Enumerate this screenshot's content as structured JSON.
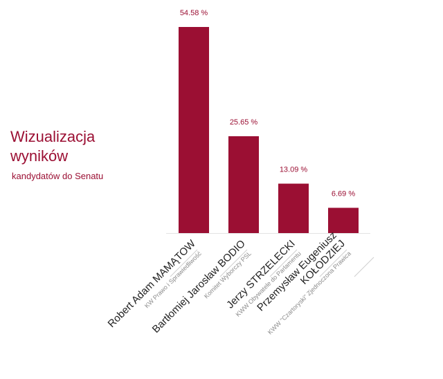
{
  "heading": {
    "line1": "Wizualizacja",
    "line2": "wyników",
    "subtitle": "kandydatów do Senatu"
  },
  "colors": {
    "accent": "#9b0f33"
  },
  "chart_data": {
    "type": "bar",
    "unit": "%",
    "ylim": [
      0,
      54.58
    ],
    "grid": false,
    "categories": [
      {
        "name": [
          "Robert Adam MAMĄTOW"
        ],
        "party": "KW Prawo i Sprawiedliwość"
      },
      {
        "name": [
          "Bartłomiej Jarosław BODIO"
        ],
        "party": "Komitet Wyborczy PSL"
      },
      {
        "name": [
          "Jerzy STRZELECKI"
        ],
        "party": "KWW Obywatele do Parlamentu"
      },
      {
        "name": [
          "Przemysław Eugeniusz",
          "KOŁODZIEJ"
        ],
        "party": "KWW \"Czartoryski\" Zjednoczona Prawica"
      }
    ],
    "values": [
      54.58,
      25.65,
      13.09,
      6.69
    ],
    "value_labels": [
      "54.58 %",
      "25.65 %",
      "13.09 %",
      "6.69 %"
    ]
  }
}
